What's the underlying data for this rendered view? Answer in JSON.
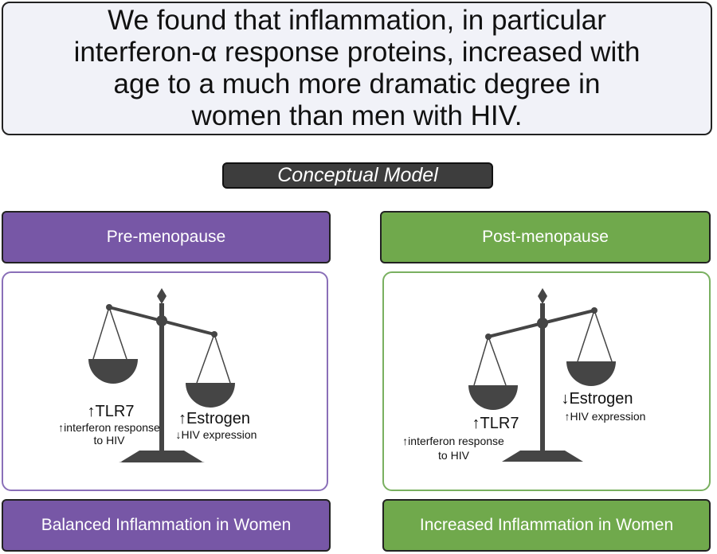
{
  "headline": "We found that inflammation, in particular\ninterferon-α response proteins, increased with\nage to a much more dramatic degree in\nwomen than men with HIV.",
  "model_label": "Conceptual Model",
  "colors": {
    "pre": "#7757a6",
    "post": "#70a94c",
    "scale": "#454545"
  },
  "pre": {
    "header": "Pre-menopause",
    "footer": "Balanced Inflammation in Women",
    "left_big": "↑TLR7",
    "left_small_1": "↑interferon response",
    "left_small_2": "to HIV",
    "right_big": "↑Estrogen",
    "right_small": "↓HIV expression"
  },
  "post": {
    "header": "Post-menopause",
    "footer": "Increased Inflammation in Women",
    "right_big": "↓Estrogen",
    "right_small": "↑HIV expression",
    "left_big": "↑TLR7",
    "left_small_1": "↑interferon response",
    "left_small_2": "to HIV"
  }
}
